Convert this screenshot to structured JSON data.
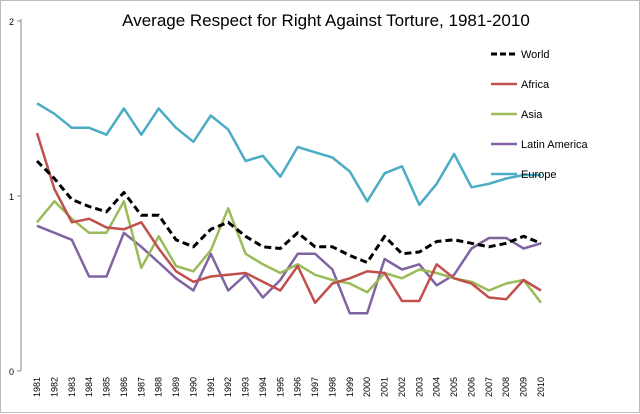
{
  "chart_data": {
    "type": "line",
    "title": "Average Respect for Right Against Torture, 1981-2010",
    "xlabel": "",
    "ylabel": "",
    "ylim": [
      0,
      2
    ],
    "yticks": [
      "0",
      "1",
      "2"
    ],
    "grid": false,
    "legend_placement": "top-right",
    "x": [
      "1981",
      "1982",
      "1983",
      "1984",
      "1985",
      "1986",
      "1987",
      "1988",
      "1989",
      "1990",
      "1991",
      "1992",
      "1993",
      "1994",
      "1995",
      "1996",
      "1997",
      "1998",
      "1999",
      "2000",
      "2001",
      "2002",
      "2003",
      "2004",
      "2005",
      "2006",
      "2007",
      "2008",
      "2009",
      "2010"
    ],
    "series": [
      {
        "name": "World",
        "color": "#000000",
        "dashed": true,
        "values": [
          1.2,
          1.1,
          0.98,
          0.94,
          0.91,
          1.02,
          0.89,
          0.89,
          0.75,
          0.71,
          0.81,
          0.85,
          0.77,
          0.71,
          0.7,
          0.79,
          0.71,
          0.71,
          0.66,
          0.62,
          0.77,
          0.67,
          0.68,
          0.74,
          0.75,
          0.73,
          0.71,
          0.73,
          0.77,
          0.73
        ]
      },
      {
        "name": "Africa",
        "color": "#c0504d",
        "dashed": false,
        "values": [
          1.36,
          1.04,
          0.85,
          0.87,
          0.82,
          0.81,
          0.85,
          0.7,
          0.57,
          0.51,
          0.54,
          0.55,
          0.56,
          0.51,
          0.46,
          0.6,
          0.39,
          0.5,
          0.53,
          0.57,
          0.56,
          0.4,
          0.4,
          0.61,
          0.53,
          0.5,
          0.42,
          0.41,
          0.52,
          0.46
        ]
      },
      {
        "name": "Asia",
        "color": "#9bbb59",
        "dashed": false,
        "values": [
          0.85,
          0.97,
          0.87,
          0.79,
          0.79,
          0.97,
          0.59,
          0.77,
          0.6,
          0.57,
          0.69,
          0.93,
          0.67,
          0.61,
          0.56,
          0.61,
          0.55,
          0.52,
          0.5,
          0.45,
          0.56,
          0.53,
          0.58,
          0.56,
          0.53,
          0.51,
          0.46,
          0.5,
          0.52,
          0.39
        ]
      },
      {
        "name": "Latin America",
        "color": "#8064a2",
        "dashed": false,
        "values": [
          0.83,
          0.79,
          0.75,
          0.54,
          0.54,
          0.79,
          0.71,
          0.62,
          0.53,
          0.46,
          0.67,
          0.46,
          0.55,
          0.42,
          0.52,
          0.67,
          0.67,
          0.58,
          0.33,
          0.33,
          0.64,
          0.58,
          0.61,
          0.49,
          0.55,
          0.7,
          0.76,
          0.76,
          0.7,
          0.73
        ]
      },
      {
        "name": "Europe",
        "color": "#4bacc6",
        "dashed": false,
        "values": [
          1.53,
          1.47,
          1.39,
          1.39,
          1.35,
          1.5,
          1.35,
          1.5,
          1.39,
          1.31,
          1.46,
          1.38,
          1.2,
          1.23,
          1.11,
          1.28,
          1.25,
          1.22,
          1.14,
          0.97,
          1.13,
          1.17,
          0.95,
          1.07,
          1.24,
          1.05,
          1.07,
          1.1,
          1.12,
          1.12
        ]
      }
    ]
  }
}
